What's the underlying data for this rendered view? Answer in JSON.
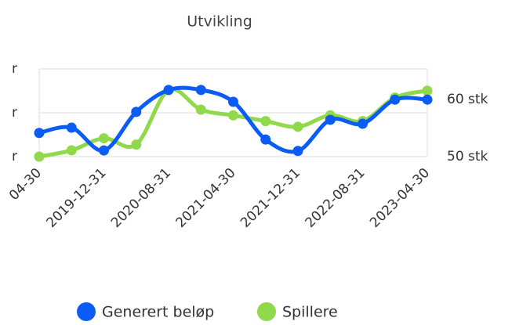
{
  "chart_data": {
    "type": "line",
    "title": "Utvikling",
    "categories": [
      "04-30",
      null,
      "2019-12-31",
      null,
      "2020-08-31",
      null,
      "2021-04-30",
      null,
      "2021-12-31",
      null,
      "2022-08-31",
      null,
      "2023-04-30"
    ],
    "series": [
      {
        "name": "Generert beløp",
        "color": "#0a5cf5",
        "axis": "y",
        "values": [
          0.54,
          0.66,
          0.14,
          1.02,
          1.52,
          1.52,
          1.25,
          0.39,
          0.13,
          0.84,
          0.75,
          1.3,
          1.3
        ]
      },
      {
        "name": "Spillere",
        "color": "#8fd94a",
        "axis": "y2",
        "values": [
          50,
          51.1,
          53.2,
          52.1,
          61.6,
          58.2,
          57.2,
          56.2,
          55.2,
          57.2,
          56.2,
          60.3,
          61.5
        ]
      }
    ],
    "ylim": [
      0,
      2
    ],
    "yticks": [
      {
        "value": 0,
        "label": "r"
      },
      {
        "value": 1,
        "label": "r"
      },
      {
        "value": 2,
        "label": "r"
      }
    ],
    "y2lim": [
      50,
      65.3
    ],
    "y2ticks": [
      {
        "value": 50,
        "label": "50 stk"
      },
      {
        "value": 60,
        "label": "60 stk"
      }
    ],
    "grid": true,
    "legend": "bottom"
  }
}
